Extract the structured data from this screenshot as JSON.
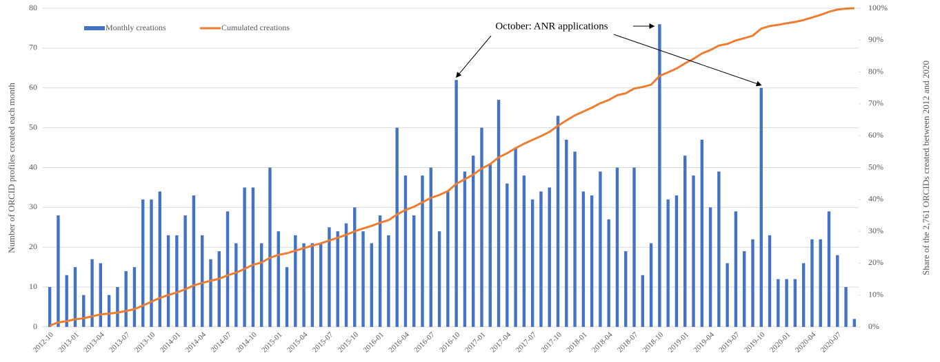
{
  "chart_data": {
    "type": "bar+line",
    "y_label": "Number of ORCID profiles created each month",
    "y2_label": "Share of the 2,761 ORCIDs created between 2012 and 2020",
    "annotation": "October: ANR applications",
    "legend": "upper left",
    "grid": true,
    "categories": [
      "2012-10",
      null,
      null,
      "2013-01",
      null,
      null,
      "2013-04",
      null,
      null,
      "2013-07",
      null,
      null,
      "2013-10",
      null,
      null,
      "2014-01",
      null,
      null,
      "2014-04",
      null,
      null,
      "2014-07",
      null,
      null,
      "2014-10",
      null,
      null,
      "2015-01",
      null,
      null,
      "2015-04",
      null,
      null,
      "2015-07",
      null,
      null,
      "2015-10",
      null,
      null,
      "2016-01",
      null,
      null,
      "2016-04",
      null,
      null,
      "2016-07",
      null,
      null,
      "2016-10",
      null,
      null,
      "2017-01",
      null,
      null,
      "2017-04",
      null,
      null,
      "2017-07",
      null,
      null,
      "2017-10",
      null,
      null,
      "2018-01",
      null,
      null,
      "2018-04",
      null,
      null,
      "2018-07",
      null,
      null,
      "2018-10",
      null,
      null,
      "2019-01",
      null,
      null,
      "2019-04",
      null,
      null,
      "2019-07",
      null,
      null,
      "2019-10",
      null,
      null,
      "2020-01",
      null,
      null,
      "2020-04",
      null,
      null,
      "2020-07",
      null,
      null
    ],
    "series": [
      {
        "name": "Monthly creations",
        "color": "#4472c4",
        "type": "bar",
        "values": [
          10,
          28,
          13,
          15,
          8,
          17,
          16,
          8,
          10,
          14,
          15,
          32,
          32,
          34,
          23,
          23,
          28,
          33,
          23,
          17,
          19,
          29,
          21,
          35,
          35,
          21,
          40,
          24,
          15,
          23,
          21,
          21,
          21,
          25,
          24,
          26,
          30,
          24,
          21,
          28,
          23,
          50,
          38,
          28,
          38,
          40,
          24,
          34,
          62,
          39,
          43,
          50,
          41,
          57,
          36,
          45,
          38,
          32,
          34,
          35,
          53,
          47,
          44,
          34,
          33,
          39,
          27,
          40,
          19,
          40,
          13,
          21,
          76,
          32,
          33,
          43,
          38,
          47,
          30,
          39,
          16,
          29,
          19,
          22,
          60,
          23,
          12,
          12,
          12,
          16,
          22,
          22,
          29,
          18,
          10,
          2
        ]
      },
      {
        "name": "Cumulated creations",
        "color": "#ed7d31",
        "type": "line",
        "axis": "y2",
        "values": [
          0.4,
          1.4,
          1.8,
          2.4,
          2.7,
          3.3,
          3.9,
          4.2,
          4.5,
          5.0,
          5.6,
          6.7,
          7.9,
          9.1,
          10.0,
          10.8,
          11.8,
          13.0,
          13.8,
          14.5,
          15.1,
          16.2,
          17.0,
          18.2,
          19.5,
          20.2,
          21.7,
          22.6,
          23.1,
          23.9,
          24.7,
          25.5,
          26.2,
          27.1,
          28.0,
          28.9,
          30.0,
          30.9,
          31.7,
          32.7,
          33.5,
          35.3,
          36.7,
          37.7,
          39.1,
          40.5,
          41.4,
          42.6,
          44.9,
          46.3,
          47.8,
          49.7,
          51.1,
          53.2,
          54.5,
          56.1,
          57.5,
          58.7,
          59.9,
          61.2,
          63.1,
          64.8,
          66.4,
          67.6,
          68.8,
          70.2,
          71.2,
          72.7,
          73.3,
          74.8,
          75.3,
          76.0,
          78.8,
          79.9,
          81.1,
          82.7,
          84.1,
          85.8,
          86.9,
          88.3,
          88.8,
          89.9,
          90.6,
          91.4,
          93.6,
          94.4,
          94.8,
          95.3,
          95.7,
          96.3,
          97.1,
          97.9,
          98.9,
          99.6,
          99.9,
          100.0
        ]
      }
    ],
    "ylim": [
      0,
      80
    ],
    "yticks": [
      0,
      10,
      20,
      30,
      40,
      50,
      60,
      70,
      80
    ],
    "y2lim": [
      0,
      100
    ],
    "y2ticks": [
      {
        "value": 0,
        "label": "0%"
      },
      {
        "value": 10,
        "label": "10%"
      },
      {
        "value": 20,
        "label": "20%"
      },
      {
        "value": 30,
        "label": "30%"
      },
      {
        "value": 40,
        "label": "40%"
      },
      {
        "value": 50,
        "label": "50%"
      },
      {
        "value": 60,
        "label": "60%"
      },
      {
        "value": 70,
        "label": "70%"
      },
      {
        "value": 80,
        "label": "80%"
      },
      {
        "value": 90,
        "label": "90%"
      },
      {
        "value": 100,
        "label": "100%"
      }
    ]
  }
}
